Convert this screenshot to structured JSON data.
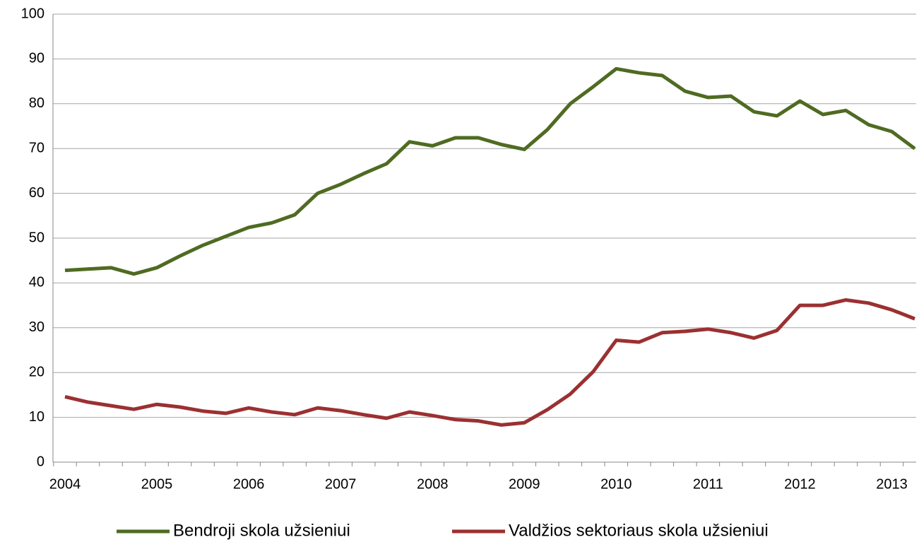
{
  "chart_data": {
    "type": "line",
    "categories": [
      "2004",
      null,
      null,
      null,
      "2005",
      null,
      null,
      null,
      "2006",
      null,
      null,
      null,
      "2007",
      null,
      null,
      null,
      "2008",
      null,
      null,
      null,
      "2009",
      null,
      null,
      null,
      "2010",
      null,
      null,
      null,
      "2011",
      null,
      null,
      null,
      "2012",
      null,
      null,
      null,
      "2013",
      null
    ],
    "series": [
      {
        "name": "Bendroji skola užsieniui",
        "color": "#4f6b22",
        "values": [
          42.8,
          43.1,
          43.4,
          42,
          43.4,
          46,
          48.4,
          50.4,
          52.4,
          53.4,
          55.2,
          60,
          62,
          64.4,
          66.6,
          71.5,
          70.6,
          72.4,
          72.4,
          70.9,
          69.8,
          74.2,
          80,
          83.8,
          87.8,
          86.9,
          86.3,
          82.8,
          81.4,
          81.7,
          78.2,
          77.3,
          80.6,
          77.6,
          78.5,
          75.3,
          73.8,
          70
        ]
      },
      {
        "name": "Valdžios sektoriaus skola užsieniui",
        "color": "#9b3031",
        "values": [
          14.6,
          13.4,
          12.6,
          11.8,
          12.9,
          12.3,
          11.4,
          10.9,
          12.1,
          11.2,
          10.6,
          12.1,
          11.5,
          10.6,
          9.8,
          11.2,
          10.4,
          9.5,
          9.2,
          8.3,
          8.8,
          11.7,
          15.2,
          20.2,
          27.2,
          26.8,
          28.9,
          29.2,
          29.7,
          28.9,
          27.7,
          29.4,
          35,
          35,
          36.2,
          35.5,
          34,
          32
        ]
      }
    ],
    "ylim": [
      0,
      100
    ],
    "yticks": [
      0,
      10,
      20,
      30,
      40,
      50,
      60,
      70,
      80,
      90,
      100
    ],
    "grid": true,
    "legend": "bottom"
  }
}
